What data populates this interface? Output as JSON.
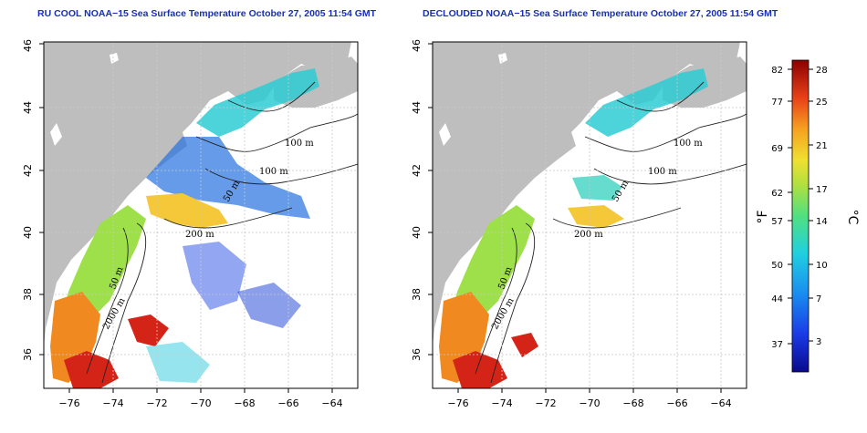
{
  "left_panel": {
    "title": "RU COOL NOAA−15 Sea Surface Temperature October 27, 2005 11:54 GMT",
    "x_ticks": [
      "−76",
      "−74",
      "−72",
      "−70",
      "−68",
      "−66",
      "−64"
    ],
    "y_ticks": [
      "36",
      "38",
      "40",
      "42",
      "44",
      "46"
    ],
    "contour_labels": [
      "100 m",
      "100 m",
      "50 m",
      "200 m",
      "50 m",
      "2000 m"
    ]
  },
  "right_panel": {
    "title": "DECLOUDED NOAA−15 Sea Surface Temperature October 27, 2005 11:54 GMT",
    "x_ticks": [
      "−76",
      "−74",
      "−72",
      "−70",
      "−68",
      "−66",
      "−64"
    ],
    "y_ticks": [
      "36",
      "38",
      "40",
      "42",
      "44",
      "46"
    ],
    "contour_labels": [
      "100 m",
      "100 m",
      "50 m",
      "200 m",
      "50 m",
      "2000 m"
    ]
  },
  "colorbar": {
    "fahrenheit_ticks": [
      "82",
      "77",
      "69",
      "62",
      "57",
      "50",
      "44",
      "37"
    ],
    "celsius_ticks": [
      "28",
      "25",
      "21",
      "17",
      "14",
      "10",
      "7",
      "3"
    ],
    "fahrenheit_unit": "°F",
    "celsius_unit": "°C",
    "color_low": "#0a0a8c",
    "color_high": "#8b0000"
  },
  "colors": {
    "land": "#bebebe",
    "title": "#1a2fb3",
    "grid": "#c8c8c8"
  }
}
